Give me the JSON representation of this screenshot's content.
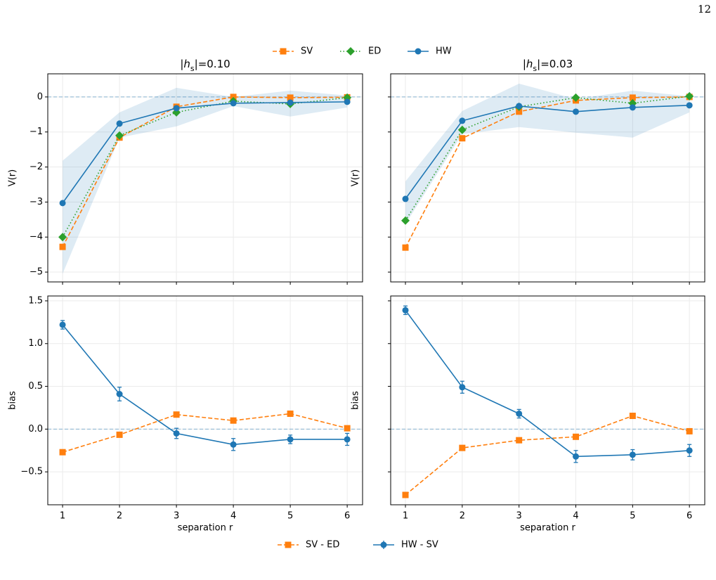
{
  "page_number": "12",
  "chart_data": [
    {
      "type": "line",
      "title_parts": [
        "|",
        "h",
        "s",
        "|=0.10"
      ],
      "ylabel": "V(r)",
      "x": [
        1,
        2,
        3,
        4,
        5,
        6
      ],
      "xlim": [
        0.74,
        6.27
      ],
      "ylim": [
        -5.28,
        0.66
      ],
      "xticks": [
        1,
        2,
        3,
        4,
        5,
        6
      ],
      "yticks": [
        {
          "value": -5,
          "label": "−5"
        },
        {
          "value": -4,
          "label": "−4"
        },
        {
          "value": -3,
          "label": "−3"
        },
        {
          "value": -2,
          "label": "−2"
        },
        {
          "value": -1,
          "label": "−1"
        },
        0
      ],
      "grid": true,
      "hline": 0,
      "show_xticklabels": false,
      "show_yticklabels": true,
      "legend": "above",
      "band": {
        "color": "#1f77b4",
        "lower": [
          -5.05,
          -1.16,
          -0.84,
          -0.26,
          -0.56,
          -0.3
        ],
        "upper": [
          -1.82,
          -0.44,
          0.26,
          0,
          0.18,
          0.04
        ]
      },
      "series": [
        {
          "name": "SV",
          "color": "#ff7f0e",
          "marker": "square",
          "dash": "6,3",
          "values": [
            -4.28,
            -1.16,
            -0.28,
            0,
            -0.02,
            -0.01
          ]
        },
        {
          "name": "ED",
          "color": "#2ca02c",
          "marker": "diamond",
          "dash": "1.5,3",
          "values": [
            -4.0,
            -1.1,
            -0.44,
            -0.12,
            -0.2,
            -0.02
          ]
        },
        {
          "name": "HW",
          "color": "#1f77b4",
          "marker": "circle",
          "dash": "none",
          "values": [
            -3.03,
            -0.76,
            -0.32,
            -0.18,
            -0.16,
            -0.14
          ]
        }
      ]
    },
    {
      "type": "line",
      "title_parts": [
        "|",
        "h",
        "s",
        "|=0.03"
      ],
      "ylabel": "V(r)",
      "x": [
        1,
        2,
        3,
        4,
        5,
        6
      ],
      "xlim": [
        0.74,
        6.27
      ],
      "ylim": [
        -5.28,
        0.66
      ],
      "xticks": [
        1,
        2,
        3,
        4,
        5,
        6
      ],
      "yticks": [
        -5,
        -4,
        -3,
        -2,
        -1,
        0
      ],
      "grid": true,
      "hline": 0,
      "show_xticklabels": false,
      "show_yticklabels": false,
      "band": {
        "color": "#1f77b4",
        "lower": [
          -3.63,
          -1.06,
          -0.86,
          -1.02,
          -1.16,
          -0.44
        ],
        "upper": [
          -2.41,
          -0.4,
          0.38,
          -0.06,
          0.18,
          0.02
        ]
      },
      "series": [
        {
          "name": "SV",
          "color": "#ff7f0e",
          "marker": "square",
          "dash": "6,3",
          "values": [
            -4.3,
            -1.18,
            -0.42,
            -0.1,
            -0.02,
            0
          ]
        },
        {
          "name": "ED",
          "color": "#2ca02c",
          "marker": "diamond",
          "dash": "1.5,3",
          "values": [
            -3.53,
            -0.94,
            -0.28,
            -0.02,
            -0.18,
            0.02
          ]
        },
        {
          "name": "HW",
          "color": "#1f77b4",
          "marker": "circle",
          "dash": "none",
          "values": [
            -2.91,
            -0.68,
            -0.26,
            -0.42,
            -0.3,
            -0.24
          ]
        }
      ]
    },
    {
      "type": "line",
      "ylabel": "bias",
      "xlabel": "separation r",
      "x": [
        1,
        2,
        3,
        4,
        5,
        6
      ],
      "xlim": [
        0.74,
        6.27
      ],
      "ylim": [
        -0.885,
        1.557
      ],
      "xticks": [
        1,
        2,
        3,
        4,
        5,
        6
      ],
      "yticks": [
        {
          "value": -0.5,
          "label": "−0.5"
        },
        {
          "value": 0,
          "label": "0.0"
        },
        {
          "value": 0.5,
          "label": "0.5"
        },
        {
          "value": 1,
          "label": "1.0"
        },
        {
          "value": 1.5,
          "label": "1.5"
        }
      ],
      "grid": true,
      "hline": 0,
      "show_xticklabels": true,
      "show_yticklabels": true,
      "legend": "below",
      "series": [
        {
          "name": "SV - ED",
          "color": "#ff7f0e",
          "marker": "square",
          "dash": "6,3",
          "values": [
            -0.27,
            -0.066,
            0.17,
            0.1,
            0.18,
            0.01
          ]
        },
        {
          "name": "HW - SV",
          "color": "#1f77b4",
          "marker": "circle",
          "dash": "none",
          "values": [
            1.22,
            0.41,
            -0.05,
            -0.18,
            -0.12,
            -0.12
          ],
          "errors": [
            0.05,
            0.08,
            0.06,
            0.07,
            0.05,
            0.07
          ]
        }
      ]
    },
    {
      "type": "line",
      "ylabel": "bias",
      "xlabel": "separation r",
      "x": [
        1,
        2,
        3,
        4,
        5,
        6
      ],
      "xlim": [
        0.74,
        6.27
      ],
      "ylim": [
        -0.885,
        1.557
      ],
      "xticks": [
        1,
        2,
        3,
        4,
        5,
        6
      ],
      "yticks": [
        -0.5,
        0,
        0.5,
        1,
        1.5
      ],
      "grid": true,
      "hline": 0,
      "show_xticklabels": true,
      "show_yticklabels": false,
      "series": [
        {
          "name": "SV - ED",
          "color": "#ff7f0e",
          "marker": "square",
          "dash": "6,3",
          "values": [
            -0.77,
            -0.22,
            -0.13,
            -0.09,
            0.155,
            -0.025
          ]
        },
        {
          "name": "HW - SV",
          "color": "#1f77b4",
          "marker": "circle",
          "dash": "none",
          "values": [
            1.39,
            0.49,
            0.18,
            -0.32,
            -0.3,
            -0.25
          ],
          "errors": [
            0.05,
            0.07,
            0.05,
            0.07,
            0.06,
            0.07
          ]
        }
      ]
    }
  ]
}
